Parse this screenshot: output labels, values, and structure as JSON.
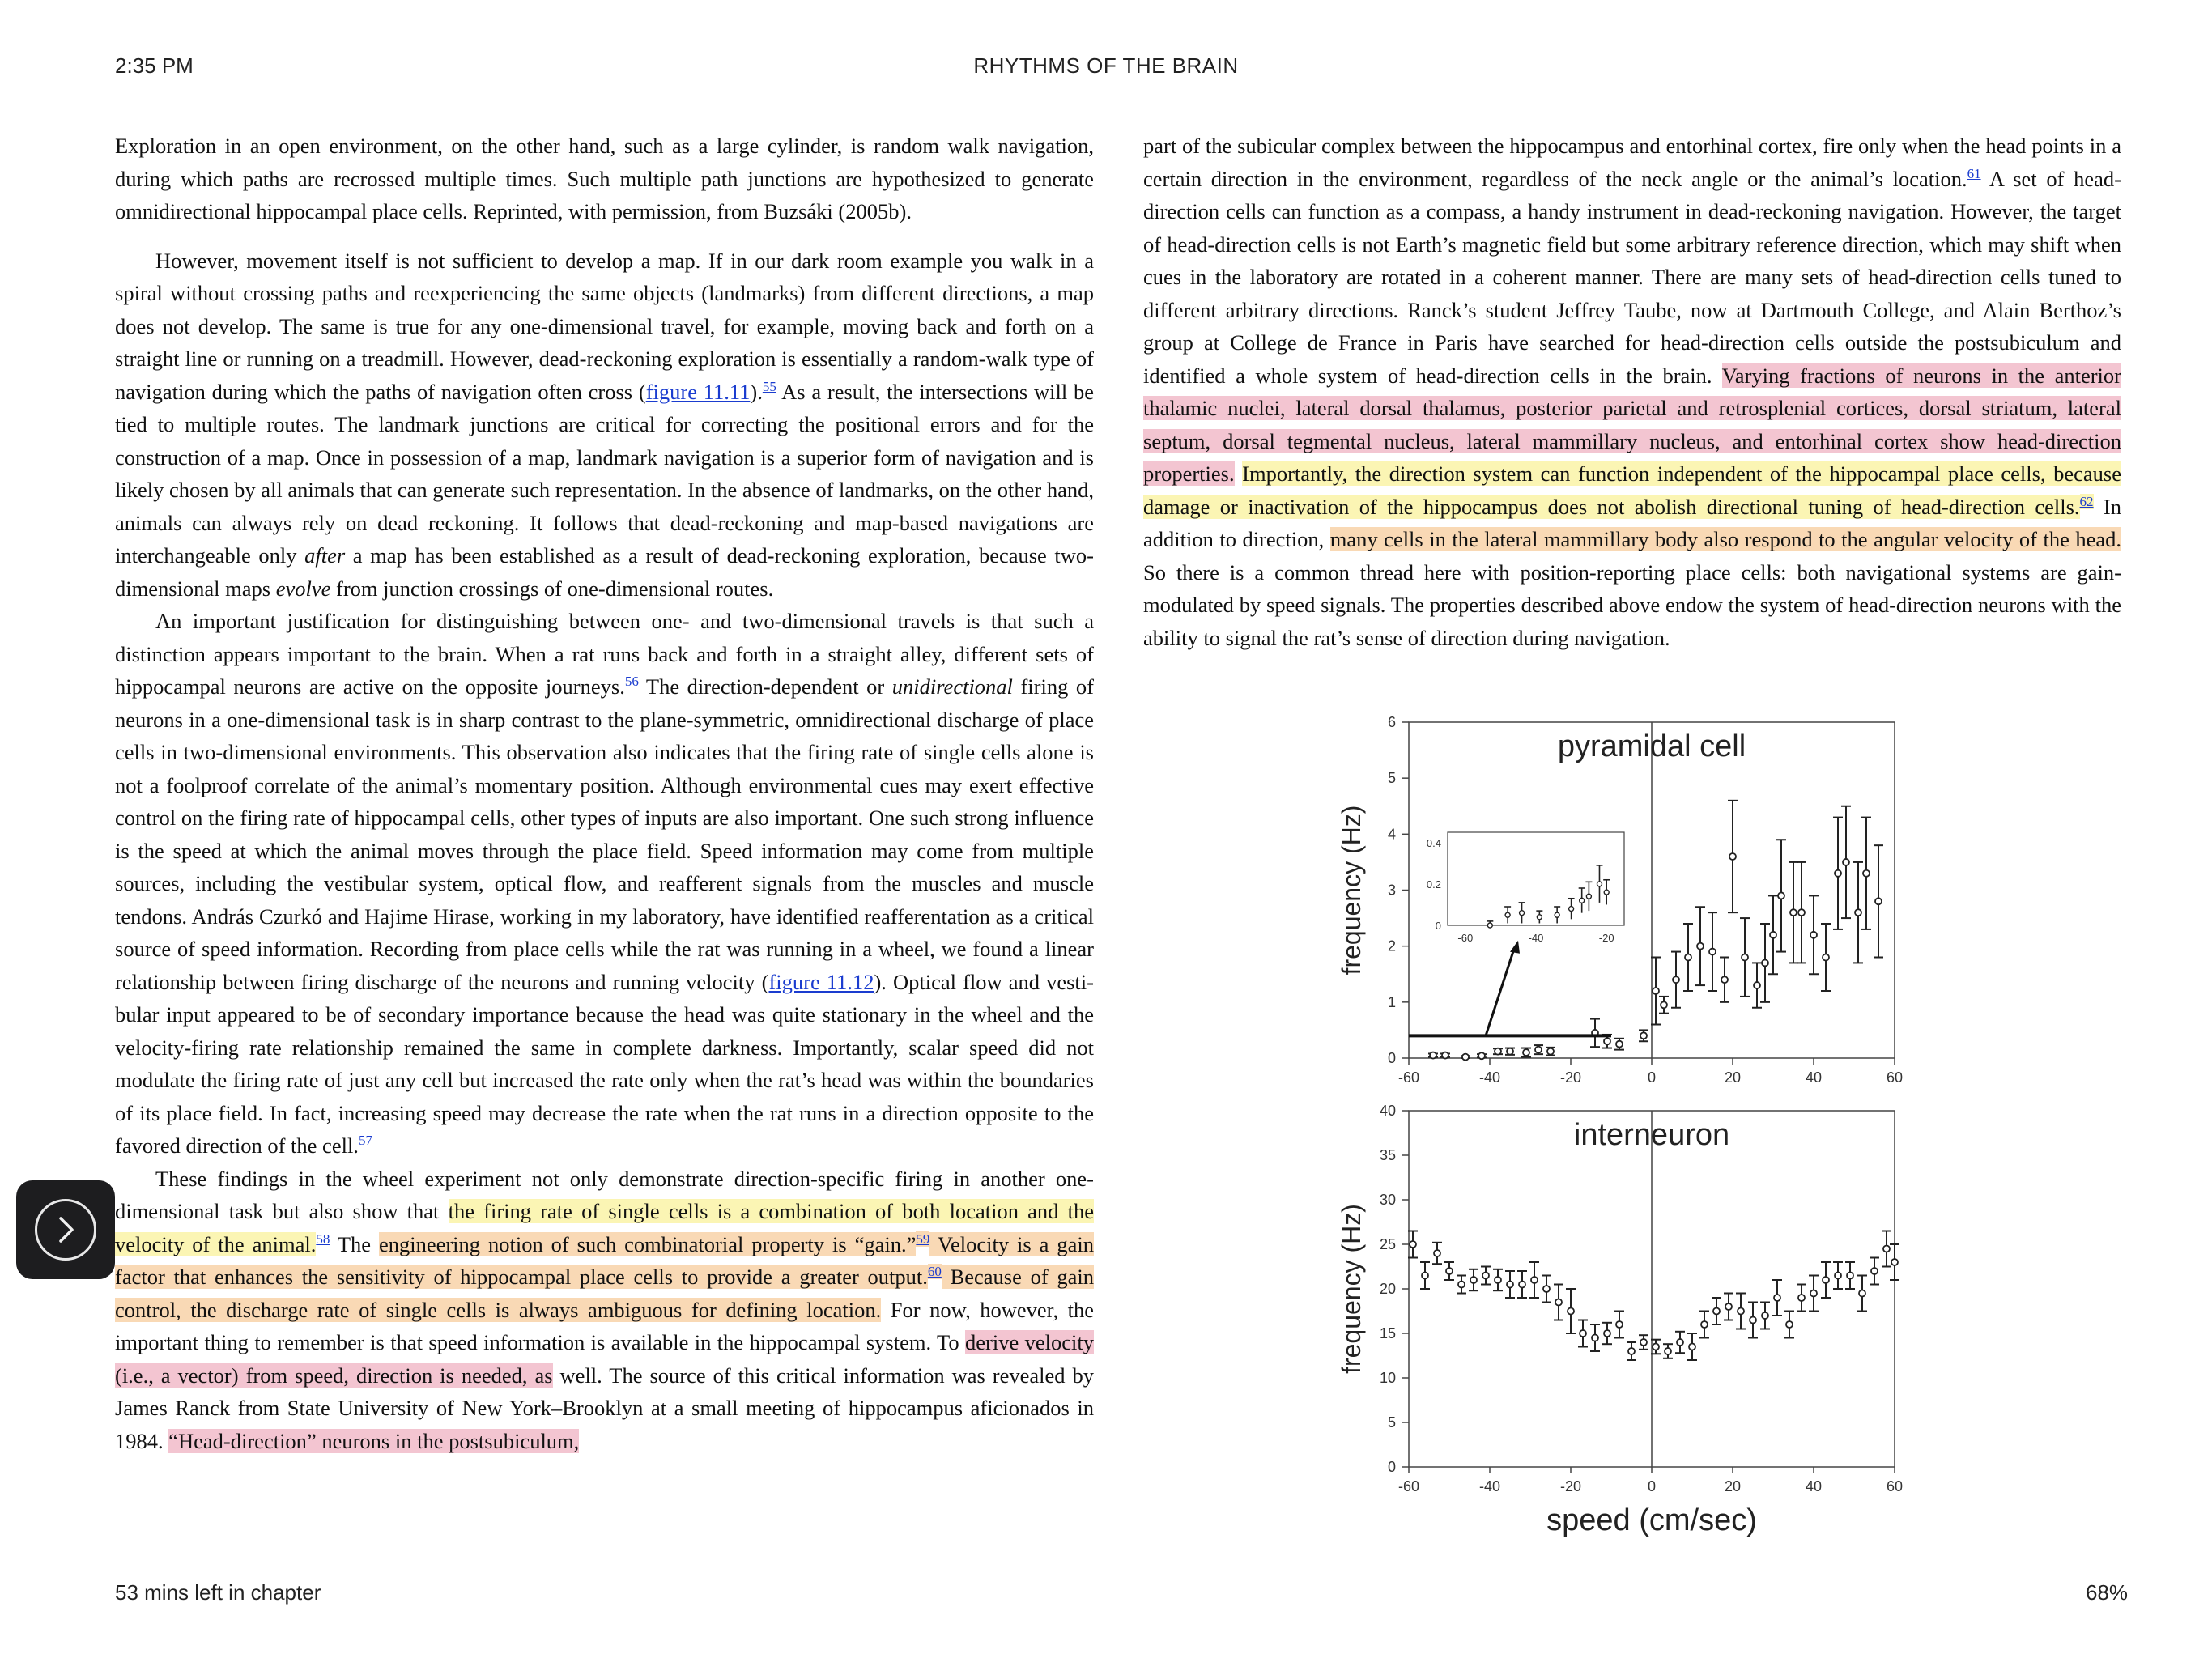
{
  "status": {
    "time": "2:35 PM"
  },
  "header": {
    "book_title": "RHYTHMS OF THE BRAIN"
  },
  "footer": {
    "time_left": "53 mins left in chapter",
    "progress": "68%"
  },
  "navigation": {
    "next_page_icon": "chevron-right-icon"
  },
  "left": {
    "caption": "Exploration in an open environment, on the other hand, such as a large cylinder, is random walk navi­gation, during which paths are recrossed multiple times. Such multiple path junctions are hypothesized to generate omnidirectional hippocampal place cells. Reprinted, with permission, from Buzsáki (2005b).",
    "p1": {
      "a": "However, movement itself is not sufficient to develop a map. If in our dark room example you walk in a spiral without crossing paths and reexperiencing the same objects (landmarks) from different direc­tions, a map does not develop. The same is true for any one-dimensional travel, for example, moving back and forth on a straight line or running on a treadmill. However, dead-reckoning exploration is essentially a random-walk type of navigation during which the paths of navigation often cross (",
      "link": "figure 11.11",
      "b": ").",
      "fn": "55",
      "c": " As a result, the intersections will be tied to multiple routes. The landmark junctions are critical for correcting the positional errors and for the construction of a map. Once in possession of a map, landmark navigation is a superior form of navigation and is likely chosen by all animals that can generate such rep­resentation. In the absence of landmarks, on the other hand, animals can always rely on dead reckoning. It follows that dead-reckoning and map-based navigations are interchangeable only ",
      "em1": "after",
      "d": " a map has been established as a result of dead-reckoning exploration, because two-dimensional maps ",
      "em2": "evolve",
      "e": " from junc­tion crossings of one-dimensional routes."
    },
    "p2": {
      "a": "An important justification for distinguishing between one- and two-dimensional travels is that such a distinction appears important to the brain. When a rat runs back and forth in a straight alley, different sets of hippocampal neurons are active on the opposite journeys.",
      "fn1": "56",
      "b": " The direction-dependent or ",
      "em": "unidir­ectional",
      "c": " firing of neurons in a one-dimensional task is in sharp contrast to the plane-symmetric, om­nidirectional discharge of place cells in two-dimensional environments. This observation also indicates that the firing rate of single cells alone is not a foolproof correlate of the animal’s momentary position. Although environmental cues may exert effective control on the firing rate of hippocampal cells, other types of inputs are also important. One such strong influence is the speed at which the animal moves through the place field. Speed information may come from multiple sources, including the vestibular system, optical flow, and reafferent signals from the muscles and muscle tendons. András Czurkó and Hajime Hirase, working in my laboratory, have identified reafferentation as a critical source of speed information. Recording from place cells while the rat was running in a wheel, we found a linear relation­ship between firing discharge of the neurons and running velocity (",
      "link": "figure 11.12",
      "d": "). Optical flow and vesti­bular input appeared to be of secondary importance because the head was quite stationary in the wheel and the velocity-firing rate relationship remained the same in complete darkness. Importantly, scalar speed did not modulate the firing rate of just any cell but increased the rate only when the rat’s head was within the boundaries of its place field. In fact, increasing speed may decrease the rate when the rat runs in a direction opposite to the favored direction of the cell.",
      "fn2": "57"
    },
    "p3": {
      "a": "These findings in the wheel experiment not only demonstrate direction-specific firing in another one-dimensional task but also show that ",
      "hl1": "the firing rate of single cells is a combination of both location and the velocity of the animal.",
      "fn1": "58",
      "b": " The ",
      "hl2": "engineering notion of such combinatorial property is “gain.”",
      "fn2": "59",
      "hl3": " Vel­ocity is a gain factor that enhances the sensitivity of hippocampal place cells to provide a greater out­put.",
      "fn3": "60",
      "hl4": " Because of gain control, the discharge rate of single cells is always ambiguous for defining loca­tion.",
      "c": " For now, however, the important thing to remember is that speed information is available in the hippocampal system. To ",
      "hl5": "derive velocity (i.e., a vector) from speed, direction is needed, as",
      "d": " well. The source of this critical information was revealed by James Ranck from State University of New York–Brooklyn at a small meeting of hippocampus aficionados in 1984. ",
      "hl6": "“Head-direction” neurons in the postsubiculum,"
    }
  },
  "right": {
    "p1": {
      "a": "part of the subicular complex between the hippocampus and entorhinal cortex, fire only when the head points in a certain direction in the environment, regardless of the neck angle or the animal’s location.",
      "fn1": "61",
      "b": " A set of head-direction cells can function as a compass, a handy instrument in dead-reckoning naviga­tion. However, the target of head-direction cells is not Earth’s magnetic field but some arbitrary reference direction, which may shift when cues in the laboratory are rotated in a coherent manner. There are many sets of head-direction cells tuned to different arbitrary directions. Ranck’s student Jeffrey Taube, now at Dartmouth College, and Alain Berthoz’s group at College de France in Paris have searched for head-direc­tion cells outside the postsubiculum and identified a whole system of head-direction cells in the brain. ",
      "hl1": "Varying fractions of neurons in the anterior thalamic nuclei, lateral dorsal thalamus, posterior parietal and retrosplenial cortices, dorsal striatum, lateral septum, dorsal tegmental nucleus, lateral mammillary nucleus, and entorhinal cortex show head-direction properties.",
      "sp": " ",
      "hl2": "Importantly, the direction system can function independent of the hippocampal place cells, because damage or inactivation of the hippocam­pus does not abolish directional tuning of head-direction cells.",
      "fn2": "62",
      "c": " In addition to direction, ",
      "hl3": "many cells in the lateral mammillary body also respond to the angular velocity of the head.",
      "d": " So there is a common thread here with position-reporting place cells: both navigational systems are gain-modulated by speed signals. The properties described above endow the system of head-direction neurons with the ability to signal the rat’s sense of direction during navigation."
    }
  },
  "figure": {
    "colors": {
      "axis": "#444444",
      "data": "#222222"
    },
    "chart_data": [
      {
        "type": "scatter",
        "title": "pyramidal cell",
        "ylabel": "frequency (Hz)",
        "xlim": [
          -60,
          60
        ],
        "ylim": [
          0,
          6
        ],
        "xticks": [
          "-60",
          "-40",
          "-20",
          "0",
          "20",
          "40",
          "60"
        ],
        "yticks": [
          "0",
          "1",
          "2",
          "3",
          "4",
          "5",
          "6"
        ],
        "points": [
          [
            -54,
            0.05,
            0.03
          ],
          [
            -51,
            0.05,
            0.03
          ],
          [
            -46,
            0.02,
            0.02
          ],
          [
            -42,
            0.04,
            0.03
          ],
          [
            -38,
            0.12,
            0.05
          ],
          [
            -35,
            0.12,
            0.06
          ],
          [
            -31,
            0.1,
            0.08
          ],
          [
            -28,
            0.15,
            0.08
          ],
          [
            -25,
            0.12,
            0.07
          ],
          [
            -14,
            0.45,
            0.25
          ],
          [
            -11,
            0.3,
            0.12
          ],
          [
            -8,
            0.25,
            0.1
          ],
          [
            -2,
            0.4,
            0.1
          ],
          [
            1,
            1.2,
            0.6
          ],
          [
            3,
            0.95,
            0.15
          ],
          [
            6,
            1.4,
            0.5
          ],
          [
            9,
            1.8,
            0.6
          ],
          [
            12,
            2.0,
            0.7
          ],
          [
            15,
            1.9,
            0.7
          ],
          [
            18,
            1.4,
            0.4
          ],
          [
            20,
            3.6,
            1.0
          ],
          [
            23,
            1.8,
            0.7
          ],
          [
            26,
            1.3,
            0.4
          ],
          [
            28,
            1.7,
            0.7
          ],
          [
            30,
            2.2,
            0.7
          ],
          [
            32,
            2.9,
            1.0
          ],
          [
            35,
            2.6,
            0.9
          ],
          [
            37,
            2.6,
            0.9
          ],
          [
            40,
            2.2,
            0.7
          ],
          [
            43,
            1.8,
            0.6
          ],
          [
            46,
            3.3,
            1.0
          ],
          [
            48,
            3.5,
            1.0
          ],
          [
            51,
            2.6,
            0.9
          ],
          [
            53,
            3.3,
            1.0
          ],
          [
            56,
            2.8,
            1.0
          ]
        ],
        "inset": {
          "xticks": [
            "-60",
            "-40",
            "-20"
          ],
          "yticks": [
            "0",
            "0.2",
            "0.4"
          ],
          "points": [
            [
              -53,
              0.0,
              0.02
            ],
            [
              -48,
              0.05,
              0.04
            ],
            [
              -44,
              0.06,
              0.05
            ],
            [
              -39,
              0.04,
              0.03
            ],
            [
              -34,
              0.05,
              0.04
            ],
            [
              -30,
              0.08,
              0.05
            ],
            [
              -27,
              0.12,
              0.06
            ],
            [
              -25,
              0.14,
              0.07
            ],
            [
              -22,
              0.2,
              0.09
            ],
            [
              -20,
              0.16,
              0.06
            ]
          ]
        }
      },
      {
        "type": "scatter",
        "title": "interneuron",
        "xlabel": "speed (cm/sec)",
        "ylabel": "frequency (Hz)",
        "xlim": [
          -60,
          60
        ],
        "ylim": [
          0,
          40
        ],
        "xticks": [
          "-60",
          "-40",
          "-20",
          "0",
          "20",
          "40",
          "60"
        ],
        "yticks": [
          "0",
          "5",
          "10",
          "15",
          "20",
          "25",
          "30",
          "35",
          "40"
        ],
        "points": [
          [
            -59,
            25,
            1.5
          ],
          [
            -56,
            21.5,
            1.5
          ],
          [
            -53,
            24,
            1.2
          ],
          [
            -50,
            22,
            1.0
          ],
          [
            -47,
            20.5,
            1.0
          ],
          [
            -44,
            21,
            1.2
          ],
          [
            -41,
            21.5,
            1.0
          ],
          [
            -38,
            21,
            1.2
          ],
          [
            -35,
            20.5,
            1.5
          ],
          [
            -32,
            20.5,
            1.5
          ],
          [
            -29,
            21,
            2.0
          ],
          [
            -26,
            20,
            1.5
          ],
          [
            -23,
            18.5,
            2.0
          ],
          [
            -20,
            17.5,
            2.5
          ],
          [
            -17,
            15,
            1.5
          ],
          [
            -14,
            14.5,
            1.5
          ],
          [
            -11,
            15,
            1.2
          ],
          [
            -8,
            16,
            1.5
          ],
          [
            -5,
            13,
            1.0
          ],
          [
            -2,
            14,
            0.8
          ],
          [
            1,
            13.5,
            0.8
          ],
          [
            4,
            13,
            0.8
          ],
          [
            7,
            14,
            1.2
          ],
          [
            10,
            13.5,
            1.5
          ],
          [
            13,
            16,
            1.5
          ],
          [
            16,
            17.5,
            1.5
          ],
          [
            19,
            18,
            1.5
          ],
          [
            22,
            17.5,
            2.0
          ],
          [
            25,
            16.5,
            2.0
          ],
          [
            28,
            17,
            1.5
          ],
          [
            31,
            19,
            2.0
          ],
          [
            34,
            16,
            1.5
          ],
          [
            37,
            19,
            1.5
          ],
          [
            40,
            19.5,
            2.0
          ],
          [
            43,
            21,
            2.0
          ],
          [
            46,
            21.5,
            1.5
          ],
          [
            49,
            21.5,
            1.5
          ],
          [
            52,
            19.5,
            2.0
          ],
          [
            55,
            22,
            1.5
          ],
          [
            58,
            24.5,
            2.0
          ],
          [
            60,
            23,
            2.0
          ]
        ]
      }
    ]
  }
}
